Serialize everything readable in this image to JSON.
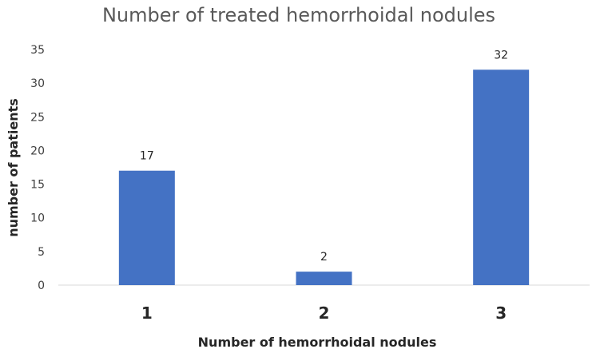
{
  "chart_data": {
    "type": "bar",
    "title": "Number of treated hemorrhoidal  nodules",
    "xlabel": "Number of hemorrhoidal nodules",
    "ylabel": "number of patients",
    "categories": [
      "1",
      "2",
      "3"
    ],
    "values": [
      17,
      2,
      32
    ],
    "data_labels": [
      "17",
      "2",
      "32"
    ],
    "ylim": [
      0,
      35
    ],
    "yticks": [
      0,
      5,
      10,
      15,
      20,
      25,
      30,
      35
    ],
    "grid": false,
    "legend": "none",
    "bar_color": "#4472C4",
    "axis_color": "#D9D9D9"
  }
}
